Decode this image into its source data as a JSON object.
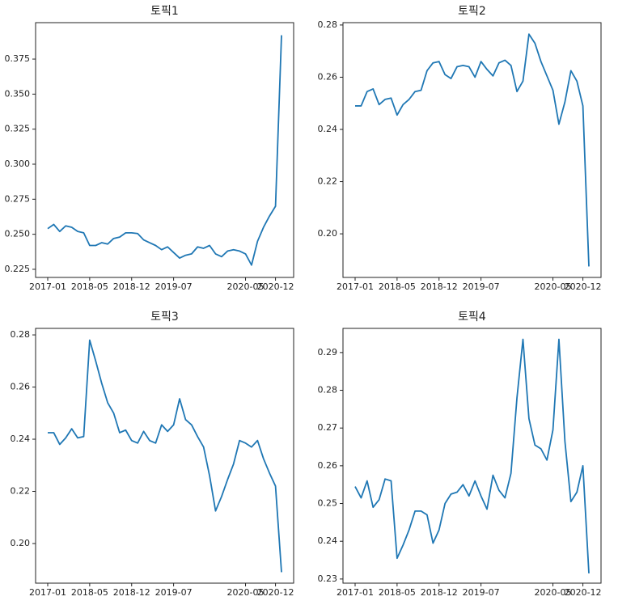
{
  "chart_data": [
    {
      "type": "line",
      "title": "토픽1",
      "color": "#1f77b4",
      "categories": [
        "2017-01",
        null,
        null,
        null,
        null,
        null,
        null,
        "2018-05",
        null,
        null,
        null,
        null,
        null,
        null,
        "2018-12",
        null,
        null,
        null,
        null,
        null,
        null,
        "2019-07",
        null,
        null,
        null,
        null,
        null,
        null,
        null,
        null,
        null,
        null,
        null,
        "2020-05",
        null,
        null,
        null,
        null,
        "2020-12",
        null
      ],
      "values": [
        0.254,
        0.257,
        0.252,
        0.256,
        0.255,
        0.252,
        0.251,
        0.242,
        0.242,
        0.244,
        0.243,
        0.247,
        0.248,
        0.251,
        0.251,
        0.2505,
        0.246,
        0.244,
        0.242,
        0.239,
        0.241,
        0.237,
        0.233,
        0.235,
        0.236,
        0.241,
        0.24,
        0.242,
        0.236,
        0.234,
        0.238,
        0.239,
        0.238,
        0.236,
        0.228,
        0.245,
        0.255,
        0.263,
        0.27,
        0.392
      ],
      "ylim": [
        0.2192,
        0.401
      ],
      "yticks": [
        0.225,
        {
          "value": 0.25,
          "label": "0.250"
        },
        0.275,
        {
          "value": 0.3,
          "label": "0.300"
        },
        0.325,
        {
          "value": 0.35,
          "label": "0.350"
        },
        0.375
      ]
    },
    {
      "type": "line",
      "title": "토픽2",
      "color": "#1f77b4",
      "categories": [
        "2017-01",
        null,
        null,
        null,
        null,
        null,
        null,
        "2018-05",
        null,
        null,
        null,
        null,
        null,
        null,
        "2018-12",
        null,
        null,
        null,
        null,
        null,
        null,
        "2019-07",
        null,
        null,
        null,
        null,
        null,
        null,
        null,
        null,
        null,
        null,
        null,
        "2020-05",
        null,
        null,
        null,
        null,
        "2020-12",
        null
      ],
      "values": [
        0.249,
        0.249,
        0.2545,
        0.2555,
        0.2495,
        0.2515,
        0.252,
        0.2455,
        0.2495,
        0.2515,
        0.2545,
        0.255,
        0.2625,
        0.2655,
        0.266,
        0.261,
        0.2595,
        0.264,
        0.2645,
        0.264,
        0.26,
        0.266,
        0.263,
        0.2605,
        0.2655,
        0.2665,
        0.2645,
        0.2545,
        0.2585,
        0.2765,
        0.273,
        0.266,
        0.2605,
        0.255,
        0.242,
        0.2505,
        0.2625,
        0.2585,
        0.249,
        0.1875
      ],
      "ylim": [
        0.1833,
        0.2809
      ],
      "yticks": [
        {
          "value": 0.2,
          "label": "0.20"
        },
        0.22,
        0.24,
        0.26,
        0.28
      ]
    },
    {
      "type": "line",
      "title": "토픽3",
      "color": "#1f77b4",
      "categories": [
        "2017-01",
        null,
        null,
        null,
        null,
        null,
        null,
        "2018-05",
        null,
        null,
        null,
        null,
        null,
        null,
        "2018-12",
        null,
        null,
        null,
        null,
        null,
        null,
        "2019-07",
        null,
        null,
        null,
        null,
        null,
        null,
        null,
        null,
        null,
        null,
        null,
        "2020-05",
        null,
        null,
        null,
        null,
        "2020-12",
        null
      ],
      "values": [
        0.2425,
        0.2425,
        0.238,
        0.2405,
        0.244,
        0.2405,
        0.241,
        0.278,
        0.27,
        0.2615,
        0.254,
        0.25,
        0.2425,
        0.2435,
        0.2395,
        0.2385,
        0.243,
        0.2395,
        0.2385,
        0.2455,
        0.243,
        0.2455,
        0.2555,
        0.2475,
        0.2455,
        0.241,
        0.237,
        0.226,
        0.2125,
        0.218,
        0.2245,
        0.2305,
        0.2395,
        0.2385,
        0.237,
        0.2395,
        0.2325,
        0.227,
        0.222,
        0.189
      ],
      "ylim": [
        0.1848,
        0.2825
      ],
      "yticks": [
        {
          "value": 0.2,
          "label": "0.20"
        },
        0.22,
        0.24,
        0.26,
        0.28
      ]
    },
    {
      "type": "line",
      "title": "토픽4",
      "color": "#1f77b4",
      "categories": [
        "2017-01",
        null,
        null,
        null,
        null,
        null,
        null,
        "2018-05",
        null,
        null,
        null,
        null,
        null,
        null,
        "2018-12",
        null,
        null,
        null,
        null,
        null,
        null,
        "2019-07",
        null,
        null,
        null,
        null,
        null,
        null,
        null,
        null,
        null,
        null,
        null,
        "2020-05",
        null,
        null,
        null,
        null,
        "2020-12",
        null
      ],
      "values": [
        0.2545,
        0.2515,
        0.256,
        0.249,
        0.251,
        0.2565,
        0.256,
        0.2355,
        0.239,
        0.243,
        0.248,
        0.248,
        0.247,
        0.2395,
        0.243,
        0.25,
        0.2525,
        0.253,
        0.255,
        0.252,
        0.256,
        0.252,
        0.2485,
        0.2575,
        0.2535,
        0.2515,
        0.258,
        0.278,
        0.2935,
        0.2725,
        0.2655,
        0.2645,
        0.2615,
        0.2695,
        0.2935,
        0.2665,
        0.2505,
        0.253,
        0.26,
        0.2315
      ],
      "ylim": [
        0.2289,
        0.2964
      ],
      "yticks": [
        0.23,
        0.24,
        0.25,
        0.26,
        0.27,
        0.28,
        0.29
      ]
    }
  ]
}
